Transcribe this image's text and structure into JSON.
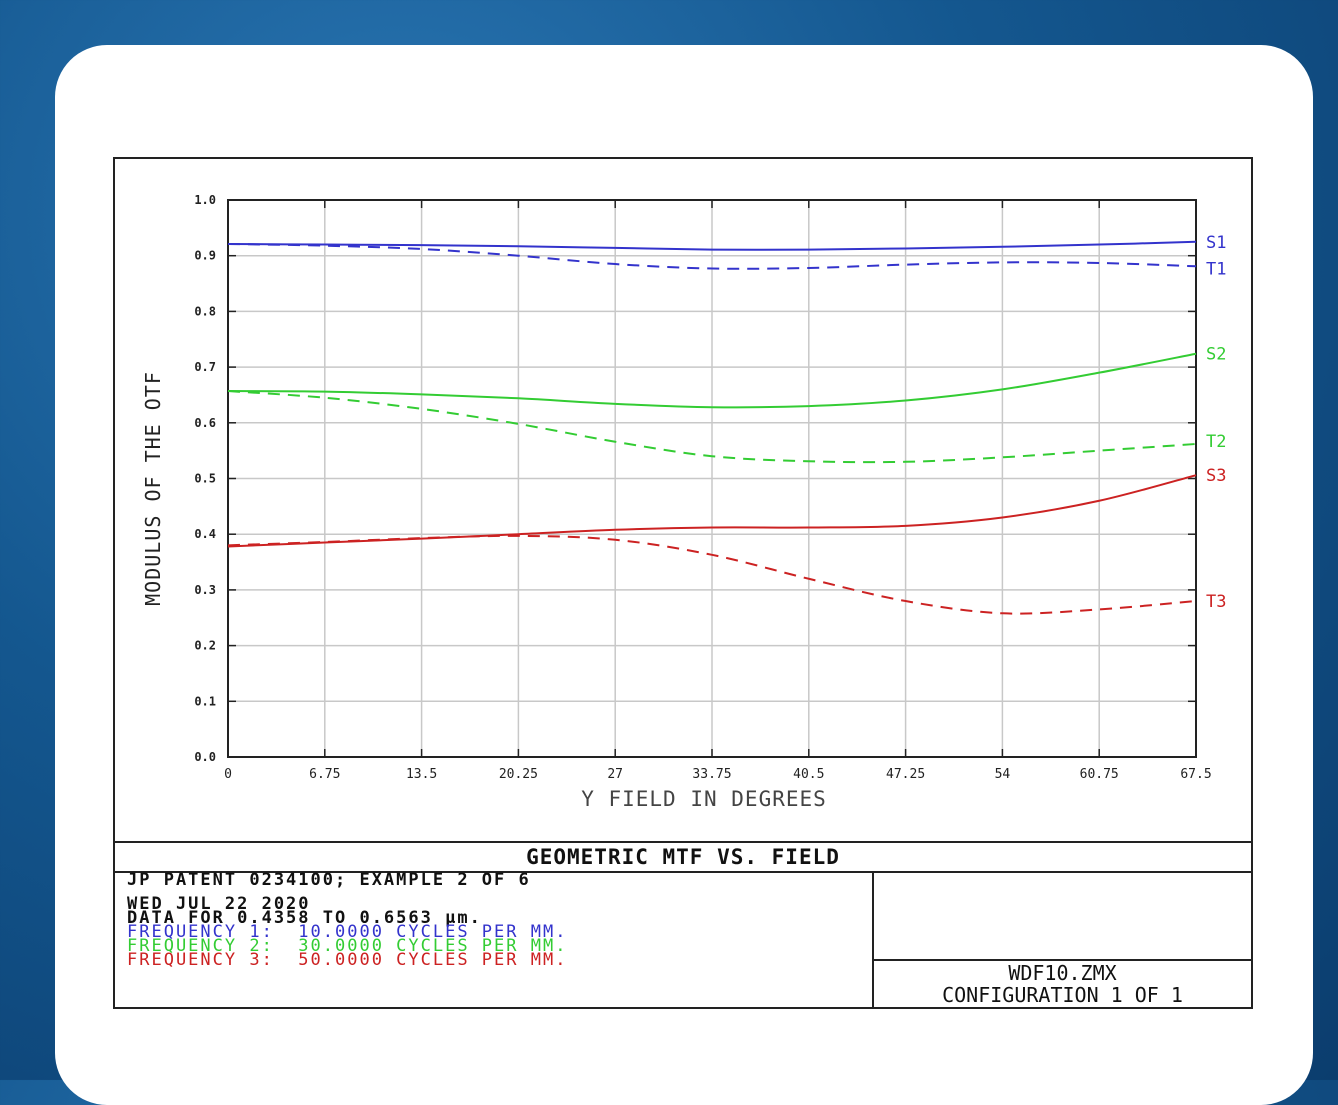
{
  "chart_data": {
    "type": "line",
    "ylabel": "MODULUS OF THE OTF",
    "xlabel": "Y FIELD IN DEGREES",
    "xlim": [
      0,
      67.5
    ],
    "ylim": [
      0,
      1.0
    ],
    "grid": true,
    "x_ticks": [
      "0",
      "6.75",
      "13.5",
      "20.25",
      "27",
      "33.75",
      "40.5",
      "47.25",
      "54",
      "60.75",
      "67.5"
    ],
    "y_ticks": [
      "0.0",
      "0.1",
      "0.2",
      "0.3",
      "0.4",
      "0.5",
      "0.6",
      "0.7",
      "0.8",
      "0.9",
      "1.0"
    ],
    "x": [
      0,
      6.75,
      13.5,
      20.25,
      27,
      33.75,
      40.5,
      47.25,
      54,
      60.75,
      67.5
    ],
    "series": [
      {
        "name": "S1",
        "color": "#3333cc",
        "dash": false,
        "values": [
          0.921,
          0.92,
          0.919,
          0.917,
          0.914,
          0.911,
          0.911,
          0.913,
          0.916,
          0.92,
          0.925
        ]
      },
      {
        "name": "T1",
        "color": "#3333cc",
        "dash": true,
        "values": [
          0.921,
          0.918,
          0.912,
          0.9,
          0.885,
          0.877,
          0.878,
          0.884,
          0.888,
          0.887,
          0.881
        ]
      },
      {
        "name": "S2",
        "color": "#33cc33",
        "dash": false,
        "values": [
          0.657,
          0.656,
          0.651,
          0.644,
          0.634,
          0.628,
          0.63,
          0.64,
          0.66,
          0.69,
          0.724
        ]
      },
      {
        "name": "T2",
        "color": "#33cc33",
        "dash": true,
        "values": [
          0.657,
          0.645,
          0.625,
          0.598,
          0.566,
          0.54,
          0.531,
          0.53,
          0.538,
          0.55,
          0.562
        ]
      },
      {
        "name": "S3",
        "color": "#cc2222",
        "dash": false,
        "values": [
          0.378,
          0.385,
          0.392,
          0.4,
          0.408,
          0.412,
          0.412,
          0.415,
          0.43,
          0.46,
          0.506
        ]
      },
      {
        "name": "T3",
        "color": "#cc2222",
        "dash": true,
        "values": [
          0.38,
          0.386,
          0.393,
          0.397,
          0.39,
          0.363,
          0.32,
          0.28,
          0.258,
          0.265,
          0.28
        ]
      }
    ]
  },
  "info": {
    "title": "GEOMETRIC MTF VS. FIELD",
    "patent": "JP PATENT 0234100; EXAMPLE 2 OF 6",
    "date": "WED JUL 22 2020",
    "wavelength": "DATA FOR 0.4358 TO 0.6563 µm.",
    "freq1": "FREQUENCY 1:  10.0000 CYCLES PER MM.",
    "freq2": "FREQUENCY 2:  30.0000 CYCLES PER MM.",
    "freq3": "FREQUENCY 3:  50.0000 CYCLES PER MM.",
    "file": "WDF10.ZMX",
    "config": "CONFIGURATION 1 OF 1"
  }
}
